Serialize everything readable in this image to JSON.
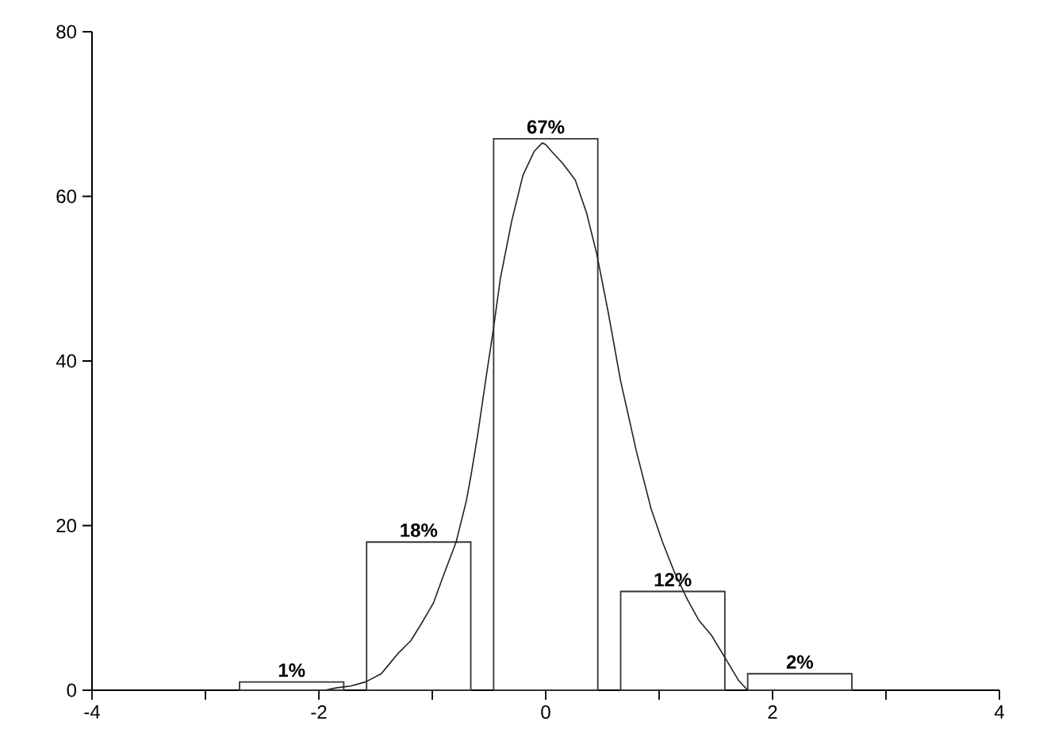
{
  "chart_data": {
    "type": "bar",
    "x": [
      -2.24,
      -1.12,
      0,
      1.12,
      2.24
    ],
    "series": [
      {
        "color": "#333333",
        "values": [
          1,
          18,
          67,
          12,
          2
        ],
        "value_labels": [
          "1%",
          "18%",
          "67%",
          "12%",
          "2%"
        ]
      },
      {
        "type": "line",
        "color": "#222222",
        "x": [
          -1.95,
          -1.84,
          -1.72,
          -1.59,
          -1.45,
          -1.39,
          -1.3,
          -1.19,
          -1.1,
          -0.99,
          -0.9,
          -0.79,
          -0.7,
          -0.66,
          -0.6,
          -0.53,
          -0.46,
          -0.4,
          -0.3,
          -0.2,
          -0.1,
          -0.03,
          0,
          0.05,
          0.15,
          0.26,
          0.36,
          0.45,
          0.55,
          0.66,
          0.8,
          0.93,
          1.03,
          1.13,
          1.25,
          1.35,
          1.46,
          1.6,
          1.7,
          1.78
        ],
        "values": [
          0,
          0.3,
          0.5,
          1,
          2,
          3,
          4.5,
          6,
          8,
          10.6,
          14,
          18,
          23,
          26,
          31,
          37.6,
          44,
          50,
          57,
          62.6,
          65.5,
          66.5,
          66.3,
          65.5,
          64,
          62,
          58,
          53,
          46,
          37.6,
          29,
          22,
          18,
          14.5,
          11,
          8.5,
          6.7,
          3.5,
          1.2,
          0
        ]
      }
    ],
    "xlim": [
      -4,
      4
    ],
    "ylim": [
      0,
      80
    ],
    "xticks": [
      -4,
      {
        "value": -3,
        "label": null
      },
      -2,
      {
        "value": -1,
        "label": null
      },
      0,
      {
        "value": 1,
        "label": null
      },
      2,
      {
        "value": 3,
        "label": null
      },
      4
    ],
    "yticks": [
      0,
      20,
      40,
      60,
      80
    ],
    "grid": false,
    "marker": "none",
    "line_style": "solid"
  }
}
